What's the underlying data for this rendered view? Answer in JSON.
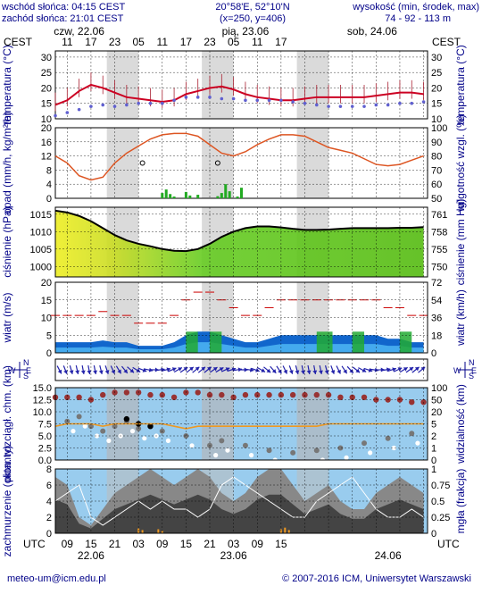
{
  "header": {
    "sunrise": "wschód słońca: 04:15 CEST",
    "sunset": "zachód słońca: 21:01 CEST",
    "coords": "20°58'E, 52°10'N",
    "grid": "(x=250, y=406)",
    "elevation_label": "wysokość (min, środek, max)",
    "elevation_values": "74 - 92 - 113 m"
  },
  "top_axis": {
    "tz": "CEST",
    "dates": [
      "czw, 22.06",
      "pią, 23.06",
      "sob, 24.06"
    ],
    "hours": [
      "11",
      "17",
      "23",
      "05",
      "11",
      "17",
      "23",
      "05",
      "11",
      "17"
    ]
  },
  "bottom_axis": {
    "tz": "UTC",
    "hours": [
      "09",
      "15",
      "21",
      "03",
      "09",
      "15",
      "21",
      "03",
      "09",
      "15"
    ],
    "dates": [
      "22.06",
      "23.06",
      "24.06"
    ]
  },
  "footer": {
    "contact": "meteo-um@icm.edu.pl",
    "copyright": "© 2007-2016 ICM, Uniwersytet Warszawski"
  },
  "colors": {
    "temp": "#cc0022",
    "dew": "#6060d0",
    "humidity": "#dd5522",
    "precip": "#22aa22",
    "wind": "#1166cc",
    "arrow": "#2222aa",
    "cloud_dark": "#606060",
    "visibility": "#ee9922"
  },
  "chart_data": [
    {
      "type": "line",
      "id": "temperature",
      "ylabel_left": "temperatura (°C)",
      "ylabel_right": "temperatura (°C)",
      "ylim": [
        10,
        32
      ],
      "yticks": [
        10,
        15,
        20,
        25,
        30
      ],
      "x_hours_utc": [
        6,
        9,
        12,
        15,
        18,
        21,
        24,
        27,
        30,
        33,
        36,
        39,
        42,
        45,
        48,
        51,
        54,
        57,
        60,
        63,
        66,
        69,
        72,
        75,
        78,
        81,
        84,
        87,
        90,
        93,
        96,
        99
      ],
      "series": [
        {
          "values": [
            14.5,
            16,
            19,
            21,
            20,
            18.5,
            17,
            16.5,
            16,
            15.5,
            16,
            18,
            19,
            20,
            20.5,
            19.5,
            18,
            17,
            16.5,
            16,
            16,
            16.5,
            17,
            17,
            17,
            17,
            17,
            17.5,
            18,
            18.5,
            18.5,
            18
          ]
        },
        {
          "values": [
            11,
            12,
            13,
            14,
            14.5,
            14,
            14.5,
            15,
            15,
            15,
            16,
            17,
            17,
            17,
            16.5,
            16.5,
            16,
            16,
            16,
            16,
            15.5,
            15,
            14.5,
            14,
            14,
            14,
            14,
            14.5,
            14.5,
            15,
            15,
            15.5
          ]
        }
      ]
    },
    {
      "type": "line",
      "id": "precip-humidity",
      "ylabel_left": "opad (mm/h, kg/m²/h)",
      "ylabel_right": "wilgotność wzgl. (%)",
      "ylim_left": [
        0,
        20
      ],
      "yticks_left": [
        0,
        4,
        8,
        12,
        16,
        20
      ],
      "ylim_right": [
        50,
        100
      ],
      "yticks_right": [
        50,
        60,
        70,
        80,
        90,
        100
      ],
      "x_hours_utc": [
        6,
        9,
        12,
        15,
        18,
        21,
        24,
        27,
        30,
        33,
        36,
        39,
        42,
        45,
        48,
        51,
        54,
        57,
        60,
        63,
        66,
        69,
        72,
        75,
        78,
        81,
        84,
        87,
        90,
        93,
        96,
        99
      ],
      "series": [
        {
          "values": [
            80,
            75,
            66,
            63,
            65,
            75,
            82,
            87,
            92,
            95,
            96,
            96,
            94,
            88,
            82,
            80,
            83,
            88,
            92,
            95,
            95,
            94,
            90,
            86,
            84,
            82,
            78,
            74,
            73,
            74,
            77,
            80
          ]
        }
      ]
    },
    {
      "type": "area",
      "id": "pressure",
      "ylabel_left": "ciśnienie (hPa)",
      "ylabel_right": "ciśnienie (mm Hg)",
      "ylim": [
        997,
        1017
      ],
      "yticks_left": [
        1000,
        1005,
        1010,
        1015
      ],
      "yticks_right": [
        "750",
        "755",
        "758",
        "761"
      ],
      "x_hours_utc": [
        6,
        9,
        12,
        15,
        18,
        21,
        24,
        27,
        30,
        33,
        36,
        39,
        42,
        45,
        48,
        51,
        54,
        57,
        60,
        63,
        66,
        69,
        72,
        75,
        78,
        81,
        84,
        87,
        90,
        93,
        96,
        99
      ],
      "series": [
        {
          "values": [
            1016,
            1015.5,
            1014.5,
            1013,
            1011,
            1009,
            1007.5,
            1006.5,
            1005.8,
            1005,
            1004.5,
            1004.4,
            1005,
            1006.5,
            1008.5,
            1010,
            1011,
            1011.5,
            1011.5,
            1011.2,
            1010.8,
            1010.5,
            1010.5,
            1010.6,
            1010.8,
            1011,
            1011,
            1011,
            1011,
            1011.1,
            1011.1,
            1011.3
          ]
        }
      ]
    },
    {
      "type": "area",
      "id": "wind",
      "ylabel_left": "wiatr (m/s)",
      "ylabel_right": "wiatr (km/h)",
      "ylim": [
        0,
        20
      ],
      "yticks_left": [
        0,
        5,
        10,
        15,
        20
      ],
      "yticks_right": [
        "0",
        "18",
        "36",
        "54",
        "72"
      ],
      "x_hours_utc": [
        6,
        9,
        12,
        15,
        18,
        21,
        24,
        27,
        30,
        33,
        36,
        39,
        42,
        45,
        48,
        51,
        54,
        57,
        60,
        63,
        66,
        69,
        72,
        75,
        78,
        81,
        84,
        87,
        90,
        93,
        96,
        99
      ],
      "series": [
        {
          "values": [
            3,
            3,
            3,
            3,
            3.5,
            3,
            3,
            2,
            2,
            2,
            3,
            5,
            6,
            6,
            5,
            4,
            3,
            3,
            4,
            5,
            5,
            5,
            5,
            5,
            5,
            5,
            5,
            5,
            4,
            4,
            3,
            3
          ]
        }
      ]
    },
    {
      "type": "scatter",
      "id": "cloud-base-visibility",
      "ylabel_left": "pion. rozciągł. chm. (km)",
      "ylabel_right": "widzialność (km)",
      "ylim_left": [
        0,
        15
      ],
      "yticks_left": [
        "0.0",
        "2.5",
        "5.0",
        "7.5",
        "10.0",
        "12.5",
        "15.0"
      ],
      "yticks_right": [
        "0",
        "1",
        "2",
        "5",
        "20",
        "50",
        "100"
      ],
      "x_hours_utc": [
        6,
        9,
        12,
        15,
        18,
        21,
        24,
        27,
        30,
        33,
        36,
        39,
        42,
        45,
        48,
        51,
        54,
        57,
        60,
        63,
        66,
        69,
        72,
        75,
        78,
        81,
        84,
        87,
        90,
        93,
        96,
        99
      ],
      "series": [
        {
          "values": [
            13,
            13,
            13,
            12.5,
            13.5,
            14,
            14,
            14,
            13.5,
            13.5,
            13,
            14,
            14,
            13.5,
            13.5,
            13,
            13.5,
            13.5,
            13.5,
            13.5,
            13.5,
            13.5,
            13.5,
            13.5,
            13,
            13,
            13,
            12.5,
            12.5,
            12.5,
            12,
            12
          ]
        },
        {
          "values": [
            7,
            7.5,
            7.5,
            7.5,
            7,
            7.5,
            7.5,
            7.5,
            7.5,
            7.5,
            7,
            6.5,
            7,
            7,
            7,
            7,
            7,
            7,
            7,
            7,
            7,
            7,
            7,
            7.5,
            7.5,
            7.5,
            7.5,
            7.5,
            7.5,
            7.5,
            7.5,
            7.5
          ]
        }
      ]
    },
    {
      "type": "area",
      "id": "cloud-cover-fog",
      "ylabel_left": "zachmurzenie (oktanty)",
      "ylabel_right": "mgła (frakcja)",
      "ylim_left": [
        0,
        8
      ],
      "yticks_left": [
        0,
        2,
        4,
        6,
        8
      ],
      "ylim_right": [
        0,
        1
      ],
      "yticks_right": [
        "0",
        "0.25",
        "0.5",
        "0.75",
        "1"
      ],
      "x_hours_utc": [
        6,
        9,
        12,
        15,
        18,
        21,
        24,
        27,
        30,
        33,
        36,
        39,
        42,
        45,
        48,
        51,
        54,
        57,
        60,
        63,
        66,
        69,
        72,
        75,
        78,
        81,
        84,
        87,
        90,
        93,
        96,
        99
      ],
      "series": [
        {
          "values": [
            7,
            6,
            2,
            1,
            3,
            5,
            6,
            7,
            8,
            7,
            6,
            7,
            8,
            7,
            5,
            4,
            5,
            7,
            8,
            8,
            6,
            4,
            5,
            6,
            4,
            3,
            3,
            5,
            6,
            7,
            6,
            5
          ]
        },
        {
          "values": [
            4,
            5,
            6,
            2,
            1,
            2,
            3,
            4,
            3,
            4,
            3,
            3,
            2,
            3,
            6,
            7,
            6,
            5,
            4,
            3,
            2,
            2,
            4,
            5,
            6,
            7,
            5,
            3,
            2,
            2,
            3,
            2
          ]
        }
      ]
    }
  ]
}
